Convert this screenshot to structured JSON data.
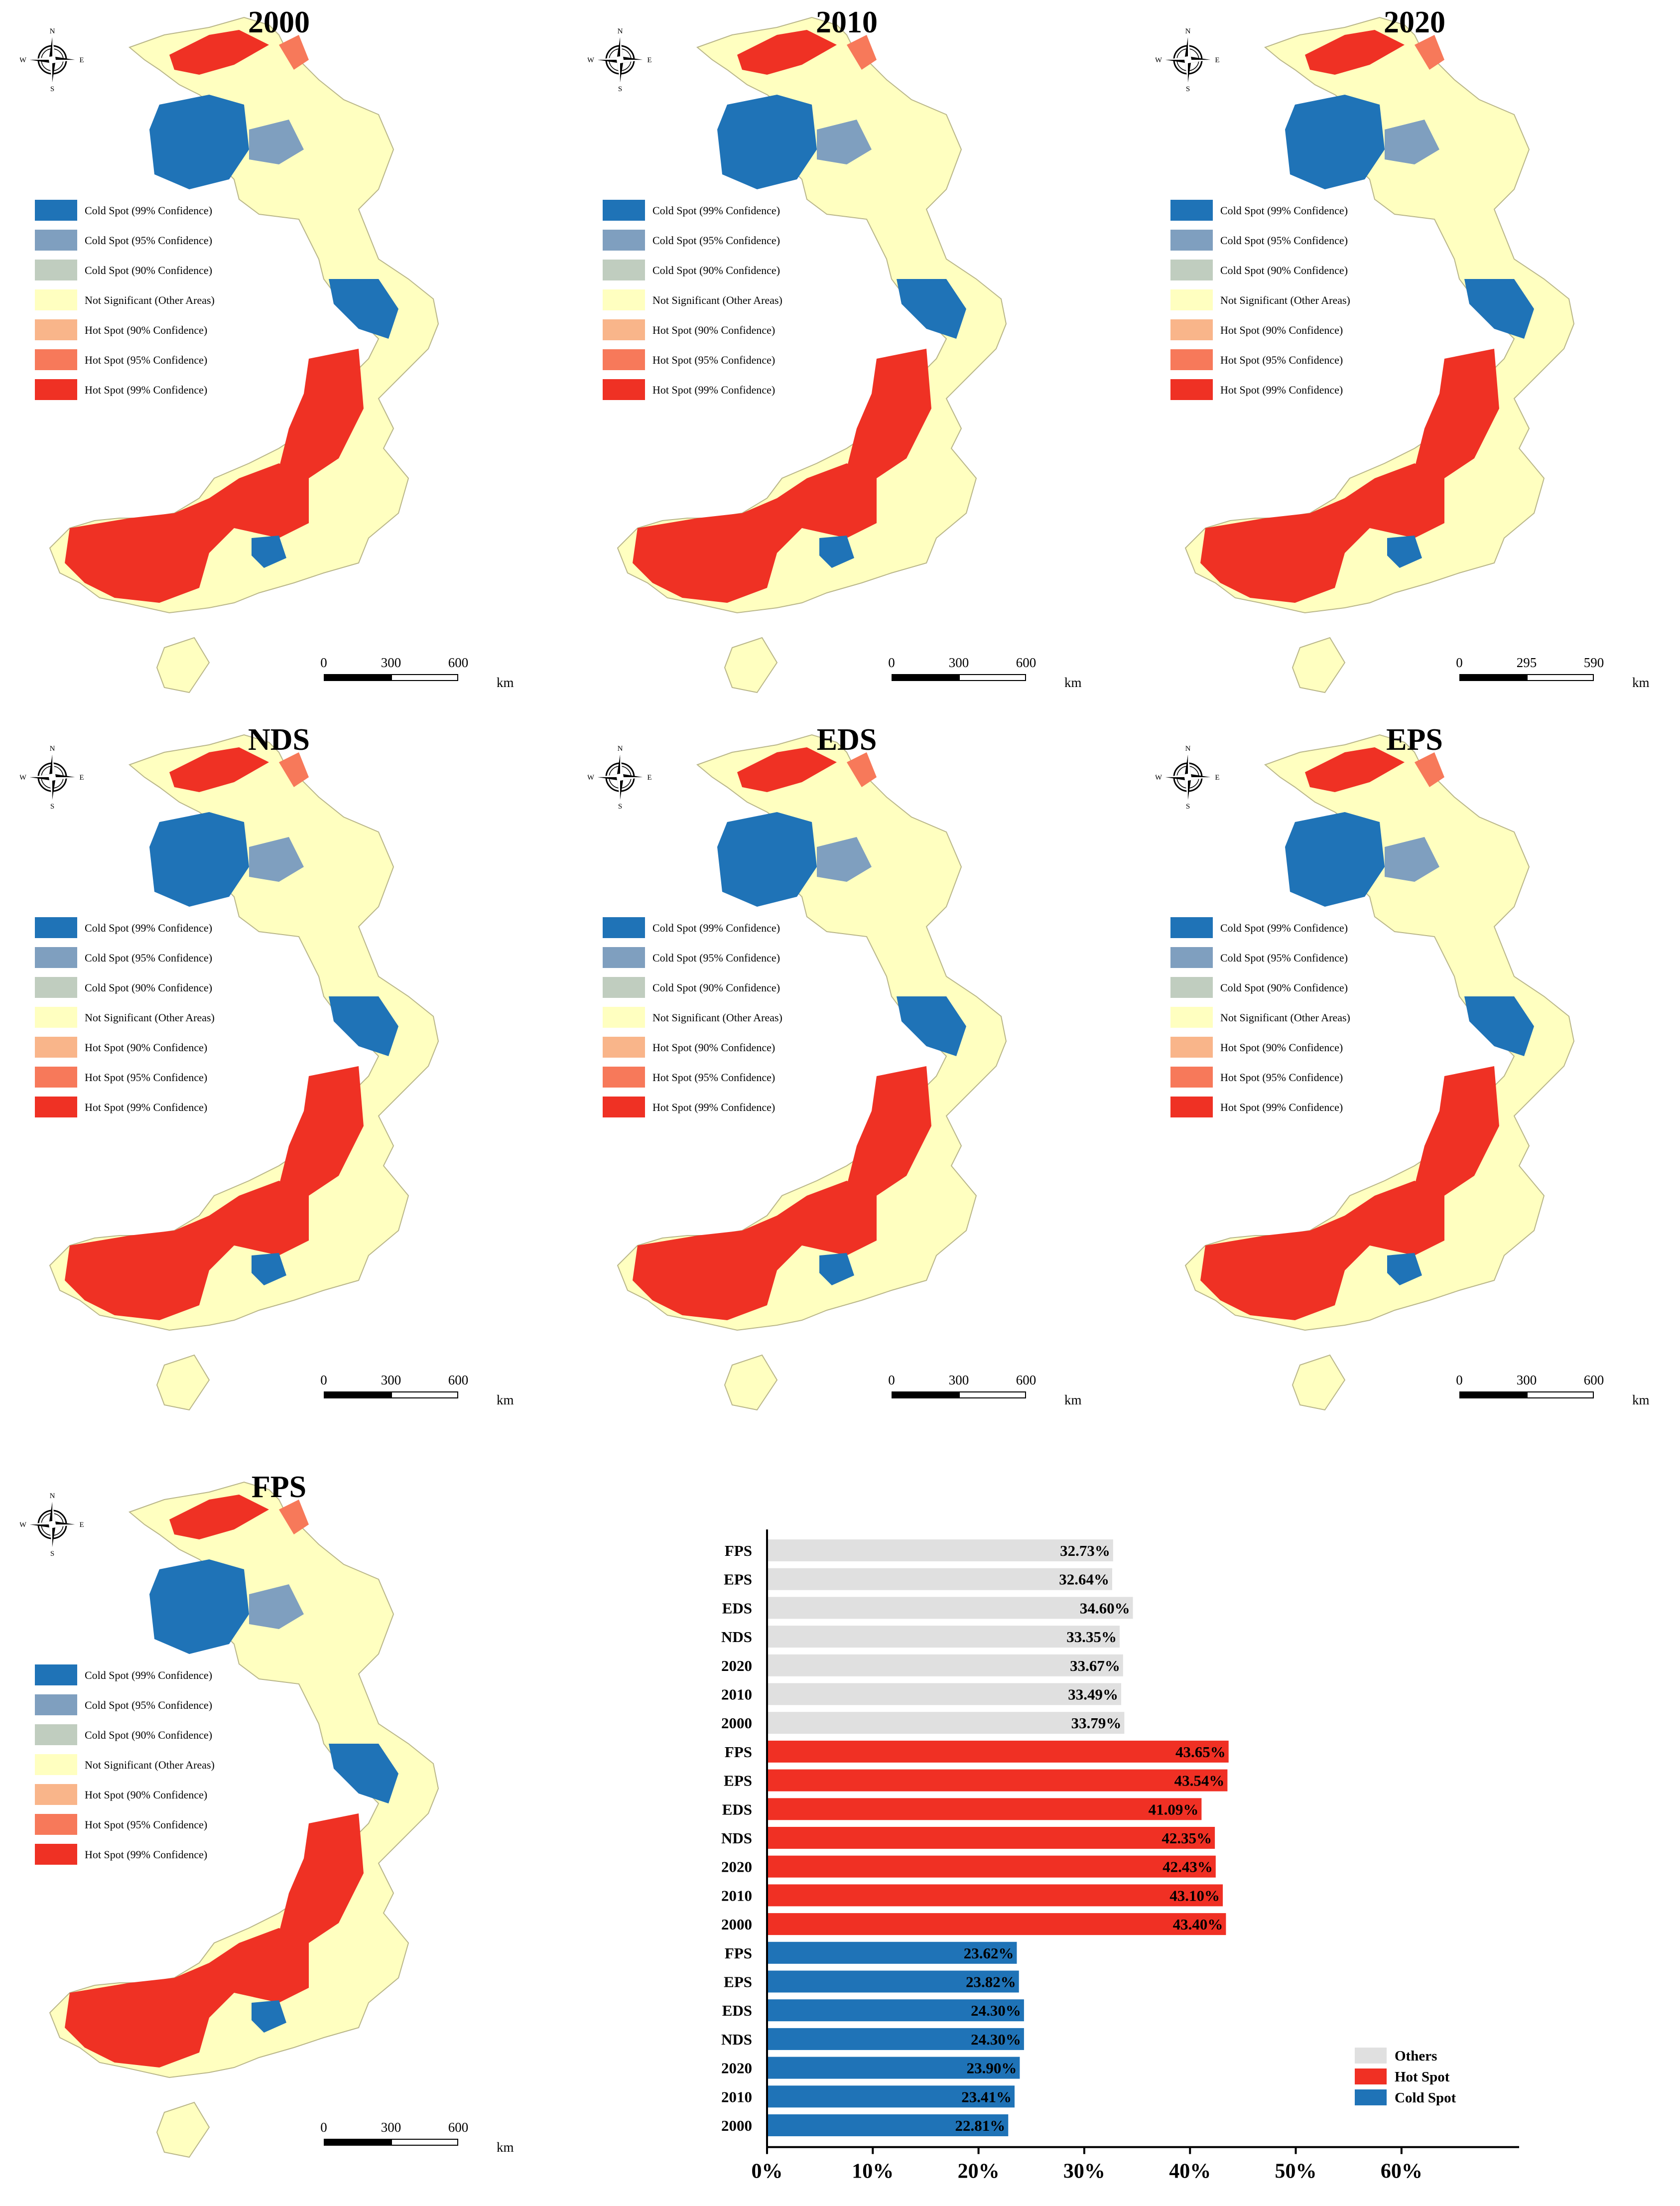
{
  "panels": [
    {
      "title": "2000",
      "scale": [
        "0",
        "300",
        "600"
      ],
      "unit": "km"
    },
    {
      "title": "2010",
      "scale": [
        "0",
        "300",
        "600"
      ],
      "unit": "km"
    },
    {
      "title": "2020",
      "scale": [
        "0",
        "295",
        "590"
      ],
      "unit": "km"
    },
    {
      "title": "NDS",
      "scale": [
        "0",
        "300",
        "600"
      ],
      "unit": "km"
    },
    {
      "title": "EDS",
      "scale": [
        "0",
        "300",
        "600"
      ],
      "unit": "km"
    },
    {
      "title": "EPS",
      "scale": [
        "0",
        "300",
        "600"
      ],
      "unit": "km"
    },
    {
      "title": "FPS",
      "scale": [
        "0",
        "300",
        "600"
      ],
      "unit": "km"
    }
  ],
  "compass": {
    "n": "N",
    "s": "S",
    "e": "E",
    "w": "W"
  },
  "legend": [
    {
      "label": "Cold Spot (99% Confidence)",
      "color": "#1f73b7"
    },
    {
      "label": "Cold Spot (95% Confidence)",
      "color": "#7f9fbf"
    },
    {
      "label": "Cold Spot (90% Confidence)",
      "color": "#c0cdbf"
    },
    {
      "label": "Not Significant (Other Areas)",
      "color": "#ffffc0"
    },
    {
      "label": "Hot Spot (90% Confidence)",
      "color": "#f9b58a"
    },
    {
      "label": "Hot Spot (95% Confidence)",
      "color": "#f7795a"
    },
    {
      "label": "Hot Spot (99% Confidence)",
      "color": "#ef3124"
    }
  ],
  "chart_data": {
    "type": "bar",
    "orientation": "horizontal",
    "categories": [
      "FPS",
      "EPS",
      "EDS",
      "NDS",
      "2020",
      "2010",
      "2000"
    ],
    "series": [
      {
        "name": "Others",
        "color": "#e0e0e0",
        "values": [
          32.73,
          32.64,
          34.6,
          33.35,
          33.67,
          33.49,
          33.79
        ],
        "labels": [
          "32.73%",
          "32.64%",
          "34.60%",
          "33.35%",
          "33.67%",
          "33.49%",
          "33.79%"
        ]
      },
      {
        "name": "Hot Spot",
        "color": "#f03024",
        "values": [
          43.65,
          43.54,
          41.09,
          42.35,
          42.43,
          43.1,
          43.4
        ],
        "labels": [
          "43.65%",
          "43.54%",
          "41.09%",
          "42.35%",
          "42.43%",
          "43.10%",
          "43.40%"
        ]
      },
      {
        "name": "Cold Spot",
        "color": "#1f73b7",
        "values": [
          23.62,
          23.82,
          24.3,
          24.3,
          23.9,
          23.41,
          22.81
        ],
        "labels": [
          "23.62%",
          "23.82%",
          "24.30%",
          "24.30%",
          "23.90%",
          "23.41%",
          "22.81%"
        ]
      }
    ],
    "xlim": [
      0,
      65
    ],
    "xticks": [
      "0%",
      "10%",
      "20%",
      "30%",
      "40%",
      "50%",
      "60%"
    ],
    "legend_order": [
      "Others",
      "Hot Spot",
      "Cold Spot"
    ],
    "legend_position": "bottom-right"
  }
}
